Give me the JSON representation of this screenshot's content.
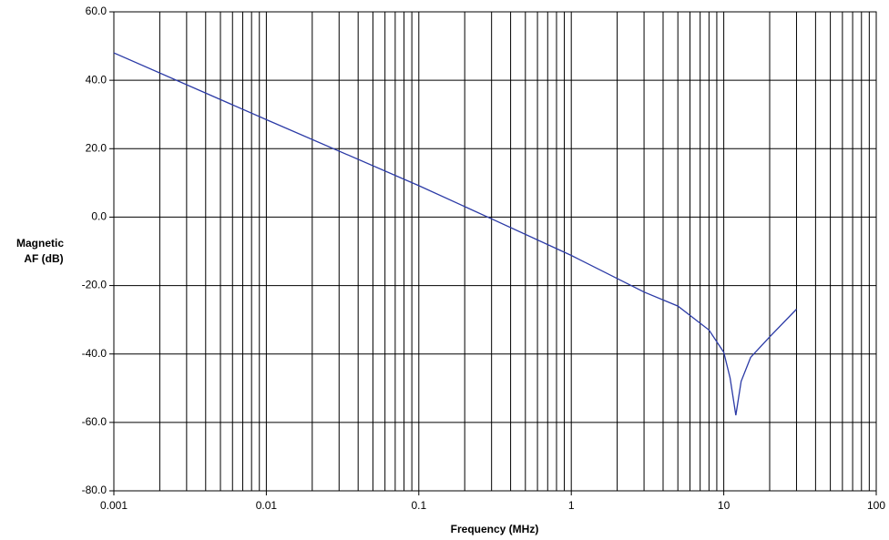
{
  "chart_data": {
    "type": "line",
    "ylabel": [
      "Magnetic",
      "AF (dB)"
    ],
    "xlabel": "Frequency (MHz)",
    "xscale": "log",
    "xlim": [
      0.001,
      100
    ],
    "xticks": [
      0.001,
      0.01,
      0.1,
      1,
      10,
      100
    ],
    "ylim": [
      -80,
      60
    ],
    "yticks": [
      {
        "value": 60,
        "label": "60.0"
      },
      {
        "value": 40,
        "label": "40.0"
      },
      {
        "value": 20,
        "label": "20.0"
      },
      {
        "value": 0,
        "label": "0.0"
      },
      {
        "value": -20,
        "label": "-20.0"
      },
      {
        "value": -40,
        "label": "-40.0"
      },
      {
        "value": -60,
        "label": "-60.0"
      },
      {
        "value": -80,
        "label": "-80.0"
      }
    ],
    "grid": true,
    "minor_grid": true,
    "x": [
      0.001,
      0.01,
      0.1,
      0.3,
      1,
      3,
      5,
      8,
      10,
      11,
      12,
      13,
      15,
      20,
      30
    ],
    "series": [
      {
        "color": "#2b3aa6",
        "values": [
          48,
          28.5,
          9.2,
          -0.5,
          -11.2,
          -21.9,
          -26,
          -33,
          -39.5,
          -47,
          -57.9,
          -48,
          -41,
          -35,
          -26.9
        ]
      }
    ]
  }
}
